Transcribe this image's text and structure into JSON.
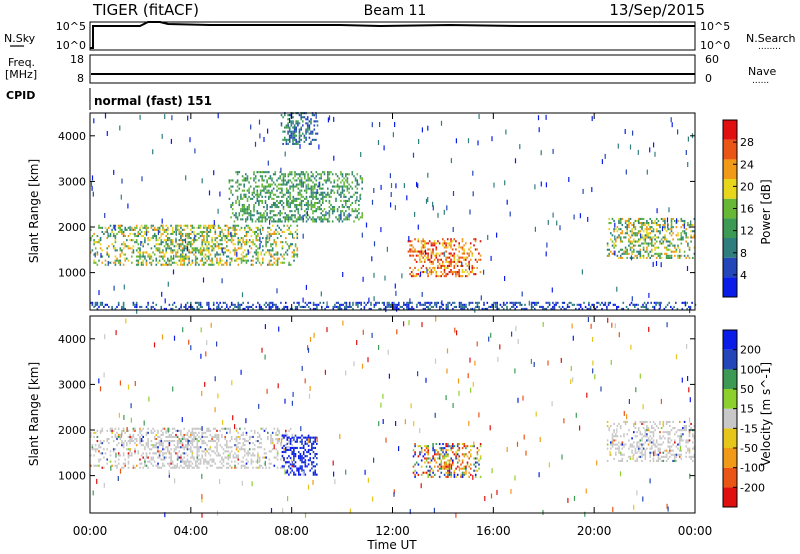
{
  "header": {
    "left": "TIGER (fitACF)",
    "center": "Beam 11",
    "right": "13/Sep/2015"
  },
  "panels": {
    "nsky": {
      "label_left": "N.Sky",
      "ticks_left": [
        "10^5",
        "10^0"
      ],
      "ticks_right": [
        "10^5",
        "10^0"
      ],
      "label_right": "N.Search",
      "label_right_dots": "........"
    },
    "freq": {
      "label_left_lines": [
        "Freq.",
        "[MHz]"
      ],
      "ticks_left": [
        "18",
        "8"
      ],
      "ticks_right": [
        "60",
        "0"
      ],
      "label_right": "Nave",
      "label_right_dots": "......"
    },
    "cpid": {
      "label": "CPID",
      "value": "normal (fast) 151"
    }
  },
  "colors": {
    "power_scale": [
      "#0a1de8",
      "#2346b9",
      "#2f7d7d",
      "#3c9a55",
      "#67b837",
      "#e7d61b",
      "#f19a17",
      "#ea5414",
      "#e01010"
    ],
    "velocity_scale": [
      "#e01010",
      "#ea5414",
      "#f19a17",
      "#e7c61b",
      "#c8c8c8",
      "#8cd02e",
      "#3c9a55",
      "#2346b9",
      "#0a1de8"
    ]
  },
  "chart_data": [
    {
      "type": "heatmap",
      "name": "power",
      "x": [
        "00:00",
        "04:00",
        "08:00",
        "12:00",
        "16:00",
        "20:00",
        "00:00"
      ],
      "xlabel": "Time UT",
      "ylabel": "Slant Range [km]",
      "yticks": [
        1000,
        2000,
        3000,
        4000
      ],
      "ylim": [
        180,
        4500
      ],
      "colorbar": {
        "label": "Power [dB]",
        "ticks": [
          4,
          8,
          12,
          16,
          20,
          24,
          28
        ],
        "range": [
          0,
          30
        ]
      },
      "echo_regions": [
        {
          "t0": 0.0,
          "t1": 8.2,
          "r0": 1150,
          "r1": 2050,
          "level": "mid-high",
          "note": "band with 20-28 dB core near 1500-1700 km between 04:00 and 08:00"
        },
        {
          "t0": 5.5,
          "t1": 10.8,
          "r0": 2100,
          "r1": 3200,
          "level": "mid"
        },
        {
          "t0": 7.5,
          "t1": 9.0,
          "r0": 3800,
          "r1": 4500,
          "level": "low-mid"
        },
        {
          "t0": 12.6,
          "t1": 15.5,
          "r0": 900,
          "r1": 1750,
          "level": "high"
        },
        {
          "t0": 20.5,
          "t1": 24.0,
          "r0": 1300,
          "r1": 2200,
          "level": "mid-high"
        },
        {
          "t0": 0.0,
          "t1": 24.0,
          "r0": 180,
          "r1": 350,
          "level": "low",
          "note": "near-range ground scatter"
        }
      ]
    },
    {
      "type": "heatmap",
      "name": "velocity",
      "x": [
        "00:00",
        "04:00",
        "08:00",
        "12:00",
        "16:00",
        "20:00",
        "00:00"
      ],
      "xlabel": "Time UT",
      "ylabel": "Slant Range [km]",
      "yticks": [
        1000,
        2000,
        3000,
        4000
      ],
      "ylim": [
        180,
        4500
      ],
      "colorbar": {
        "label": "Velocity [m s^-1]",
        "ticks": [
          -200,
          -100,
          -50,
          -15,
          15,
          50,
          100,
          200
        ]
      },
      "echo_regions": [
        {
          "t0": 0.0,
          "t1": 8.0,
          "r0": 1150,
          "r1": 2050,
          "level": "near-zero",
          "note": "grey ground scatter"
        },
        {
          "t0": 7.6,
          "t1": 9.0,
          "r0": 1000,
          "r1": 1900,
          "level": "strong-positive",
          "note": "blue"
        },
        {
          "t0": 12.8,
          "t1": 15.5,
          "r0": 950,
          "r1": 1700,
          "level": "mixed",
          "note": "blue, green, orange and red"
        },
        {
          "t0": 20.5,
          "t1": 24.0,
          "r0": 1300,
          "r1": 2200,
          "level": "near-zero"
        }
      ]
    }
  ],
  "x_axis": {
    "ticks": [
      "00:00",
      "04:00",
      "08:00",
      "12:00",
      "16:00",
      "20:00",
      "00:00"
    ],
    "label": "Time UT"
  }
}
